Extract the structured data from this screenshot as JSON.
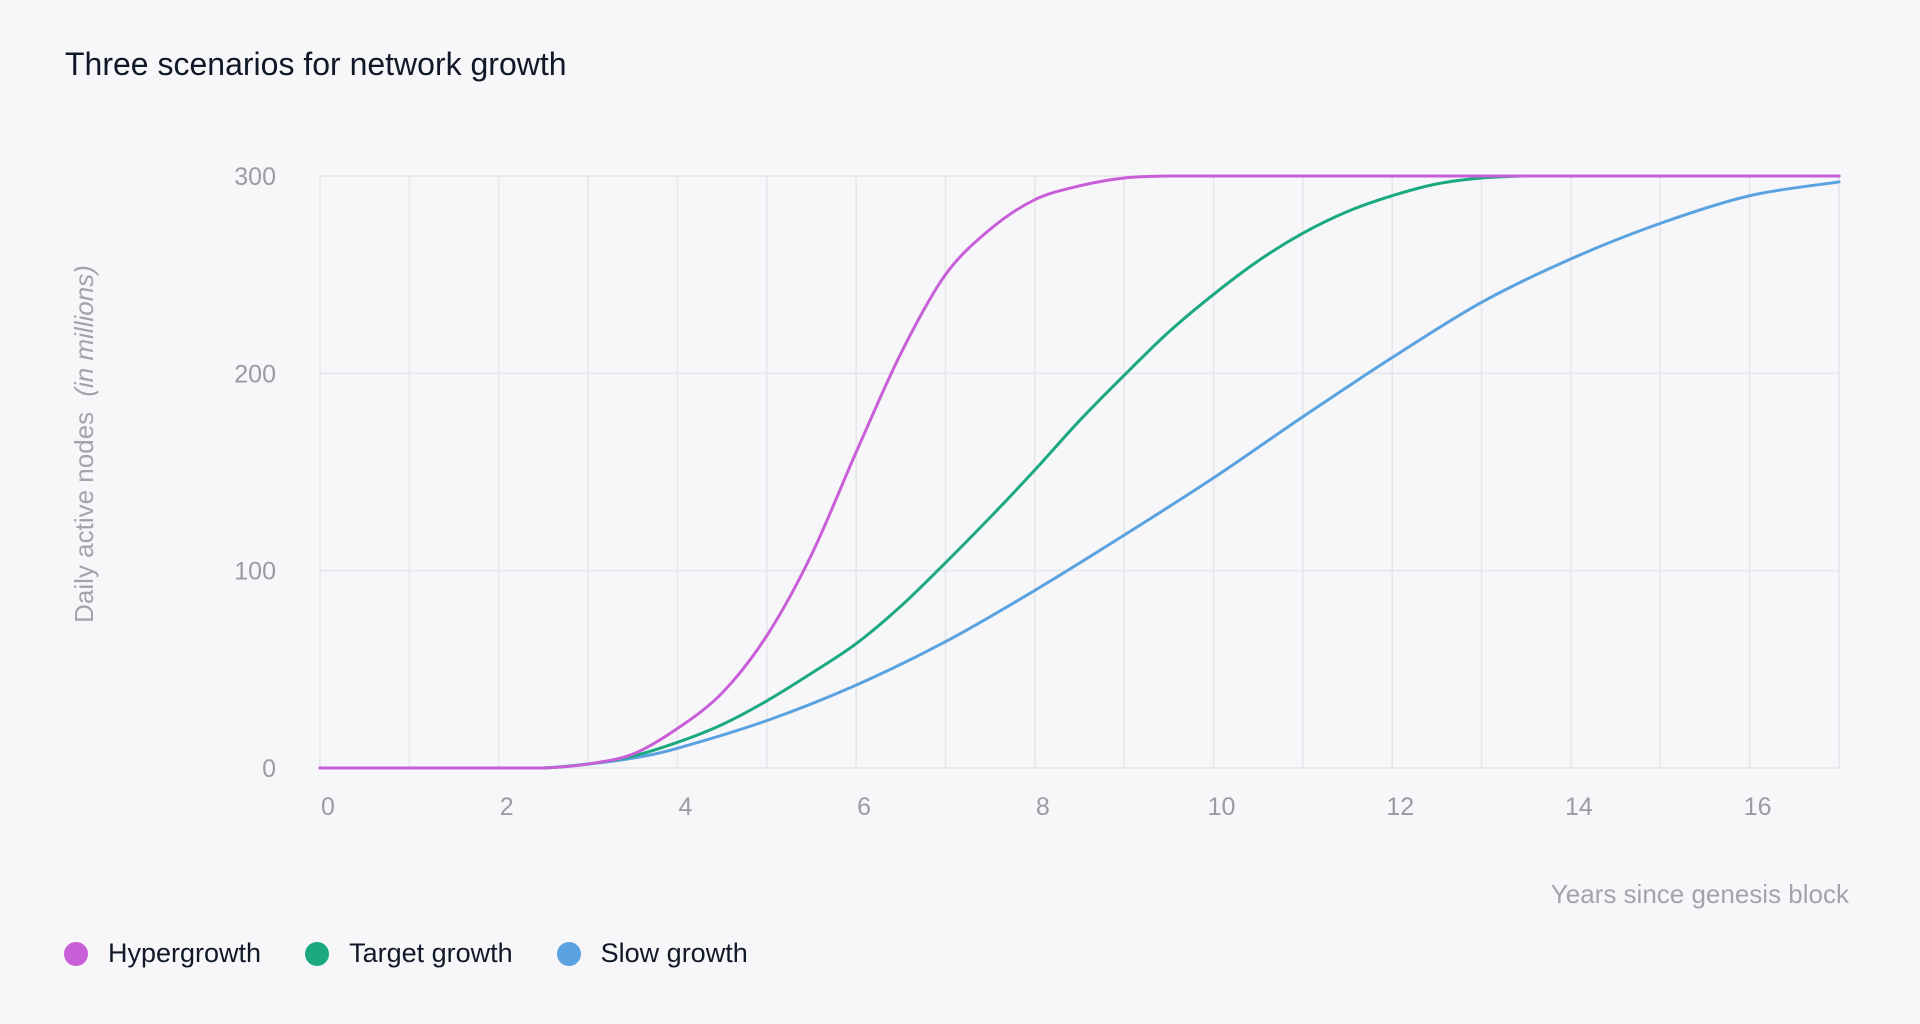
{
  "chart_data": {
    "type": "line",
    "title": "Three scenarios for network growth",
    "xlabel": "Years since genesis block",
    "ylabel": "Daily active nodes",
    "ylabel_note": "(in millions)",
    "xlim": [
      0,
      17
    ],
    "ylim": [
      0,
      300
    ],
    "x_ticks": [
      0,
      2,
      4,
      6,
      8,
      10,
      12,
      14,
      16
    ],
    "y_ticks": [
      0,
      100,
      200,
      300
    ],
    "x_grid_step": 1,
    "grid": true,
    "legend_position": "bottom-left",
    "series": [
      {
        "name": "Hypergrowth",
        "color": "#c85fd8",
        "x": [
          0,
          1,
          2,
          2.5,
          3,
          3.5,
          4,
          4.5,
          5,
          5.5,
          6,
          6.5,
          7,
          7.5,
          8,
          8.5,
          9,
          9.5,
          10,
          11,
          12,
          13,
          14,
          15,
          16,
          17
        ],
        "y": [
          0,
          0,
          0,
          0,
          2,
          7,
          20,
          38,
          67,
          108,
          160,
          210,
          250,
          273,
          288,
          295,
          299,
          300,
          300,
          300,
          300,
          300,
          300,
          300,
          300,
          300
        ]
      },
      {
        "name": "Target growth",
        "color": "#1aaa7e",
        "x": [
          0,
          1,
          2,
          2.5,
          3,
          3.5,
          4,
          4.5,
          5,
          5.5,
          6,
          6.5,
          7,
          7.5,
          8,
          8.5,
          9,
          9.5,
          10,
          10.5,
          11,
          11.5,
          12,
          12.5,
          13,
          13.5,
          14,
          15,
          16,
          17
        ],
        "y": [
          0,
          0,
          0,
          0,
          2,
          6,
          13,
          22,
          34,
          48,
          63,
          82,
          104,
          127,
          151,
          176,
          199,
          221,
          240,
          257,
          271,
          282,
          290,
          296,
          299,
          300,
          300,
          300,
          300,
          300
        ]
      },
      {
        "name": "Slow growth",
        "color": "#5aa2e0",
        "x": [
          0,
          1,
          2,
          2.5,
          3,
          3.5,
          4,
          5,
          6,
          7,
          8,
          9,
          10,
          11,
          12,
          13,
          14,
          15,
          16,
          17
        ],
        "y": [
          0,
          0,
          0,
          0,
          2,
          5,
          10,
          24,
          42,
          64,
          90,
          118,
          147,
          178,
          208,
          236,
          258,
          276,
          290,
          297
        ]
      }
    ]
  }
}
